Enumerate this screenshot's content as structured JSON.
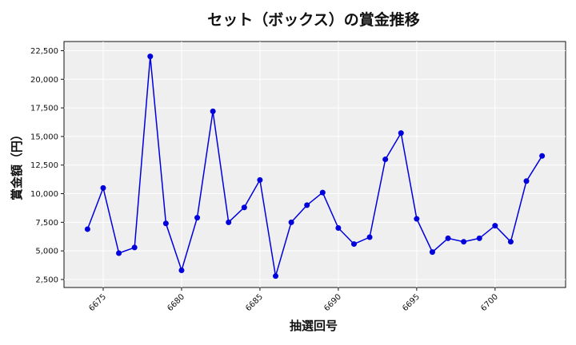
{
  "chart_data": {
    "type": "line",
    "title": "セット（ボックス）の賞金推移",
    "xlabel": "抽選回号",
    "ylabel": "賞金額（円）",
    "xlim": [
      6672.5,
      6704.5
    ],
    "ylim": [
      1800,
      23300
    ],
    "x_ticks": [
      6675,
      6680,
      6685,
      6690,
      6695,
      6700
    ],
    "y_ticks": [
      2500,
      5000,
      7500,
      10000,
      12500,
      15000,
      17500,
      20000,
      22500
    ],
    "y_tick_labels": [
      "2,500",
      "5,000",
      "7,500",
      "10,000",
      "12,500",
      "15,000",
      "17,500",
      "20,000",
      "22,500"
    ],
    "grid": true,
    "series": [
      {
        "color": "#0000dd",
        "x": [
          6674,
          6675,
          6676,
          6677,
          6678,
          6679,
          6680,
          6681,
          6682,
          6683,
          6684,
          6685,
          6686,
          6687,
          6688,
          6689,
          6690,
          6691,
          6692,
          6693,
          6694,
          6695,
          6696,
          6697,
          6698,
          6699,
          6700,
          6701,
          6702,
          6703
        ],
        "values": [
          6900,
          10500,
          4800,
          5300,
          22000,
          7400,
          3300,
          7900,
          17200,
          7500,
          8800,
          11200,
          2800,
          7500,
          9000,
          10100,
          7000,
          5600,
          6200,
          13000,
          15300,
          7800,
          4900,
          6100,
          5800,
          6100,
          7200,
          5800,
          11100,
          13300
        ]
      }
    ]
  }
}
